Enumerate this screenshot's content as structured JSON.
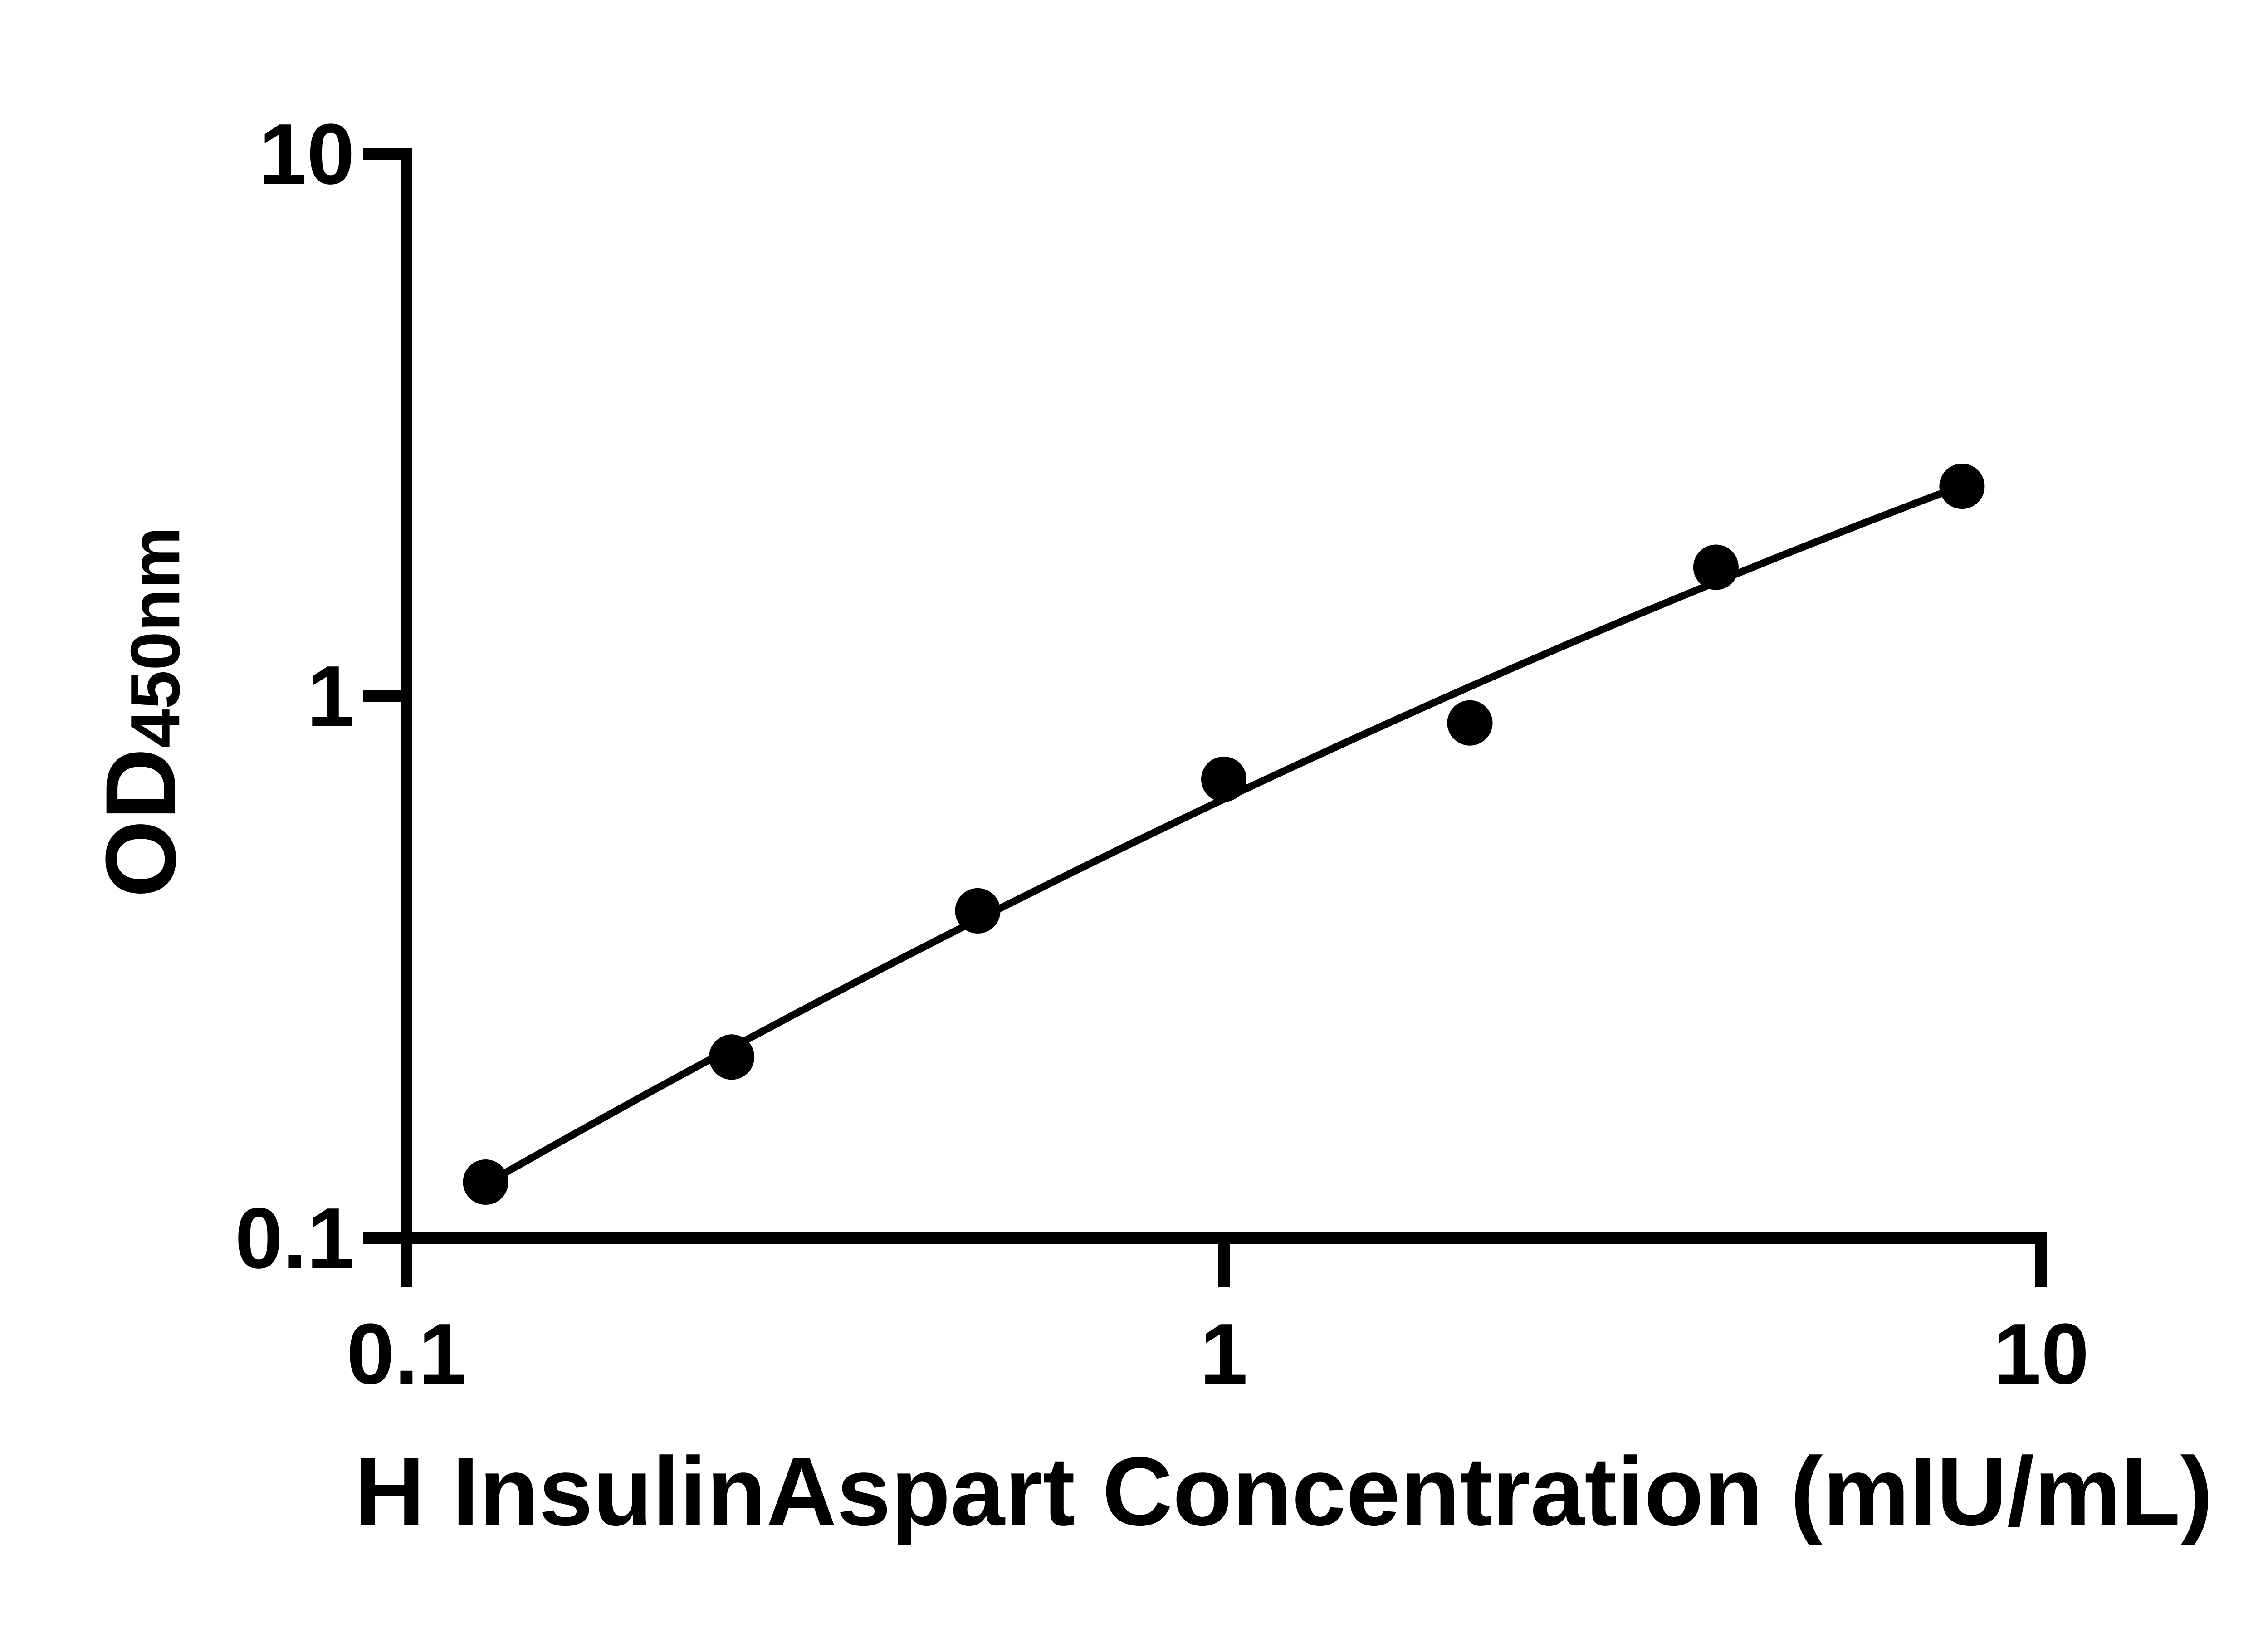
{
  "figure": {
    "background_color": "#ffffff",
    "ink_color": "#000000"
  },
  "chart_data": {
    "type": "scatter",
    "title": "",
    "xlabel": "H InsulinAspart Concentration (mIU/mL)",
    "ylabel": "OD450nm",
    "ylabel_base": "OD",
    "ylabel_subscript": "450nm",
    "x_scale": "log10",
    "y_scale": "log10",
    "xlim": [
      0.1,
      10
    ],
    "ylim": [
      0.1,
      10
    ],
    "x_ticks": [
      0.1,
      1,
      10
    ],
    "x_tick_labels": [
      "0.1",
      "1",
      "10"
    ],
    "y_ticks": [
      10,
      1,
      0.1
    ],
    "y_tick_labels": [
      "10",
      "1",
      "0.1"
    ],
    "grid": false,
    "legend": false,
    "series": [
      {
        "name": "standard-curve-points",
        "marker": "filled-circle",
        "color": "#000000",
        "x": [
          0.125,
          0.25,
          0.5,
          1,
          2,
          4,
          8
        ],
        "y": [
          0.127,
          0.216,
          0.402,
          0.703,
          0.893,
          1.73,
          2.44
        ]
      }
    ],
    "fit_curve": {
      "description": "smooth regression line through points, log(y) quadratic in log(x)",
      "coeffs": {
        "a": -0.1898,
        "b": 0.7133,
        "c": -0.0804
      },
      "x_domain": [
        0.125,
        8
      ],
      "color": "#000000"
    }
  }
}
